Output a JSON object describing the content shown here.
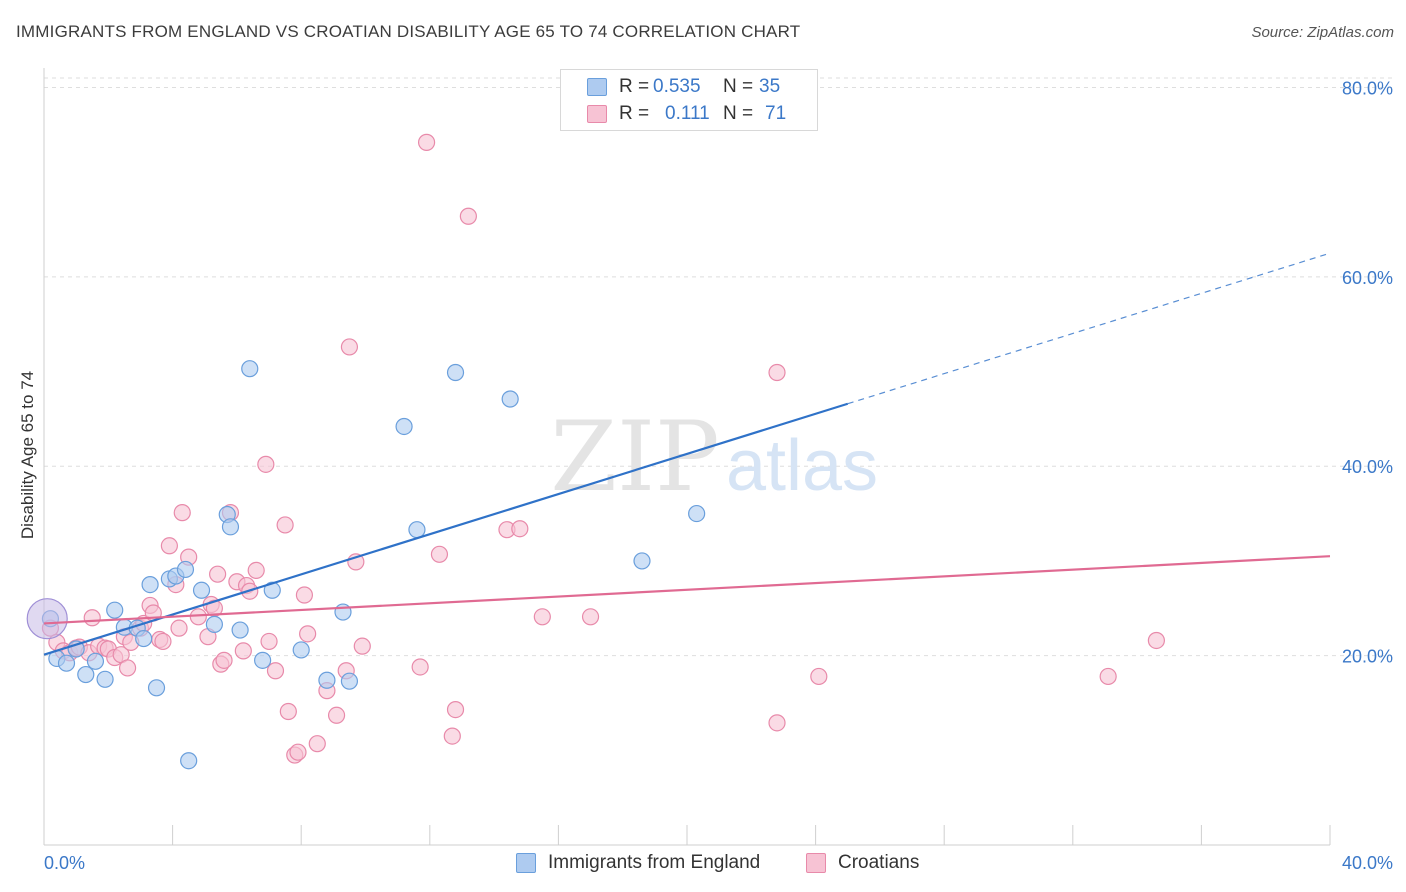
{
  "title": "IMMIGRANTS FROM ENGLAND VS CROATIAN DISABILITY AGE 65 TO 74 CORRELATION CHART",
  "source": "Source: ZipAtlas.com",
  "watermark": {
    "zip": "ZIP",
    "atlas": "atlas"
  },
  "legend_top": [
    {
      "r_label": "R =",
      "r_value": "0.535",
      "n_label": "N =",
      "n_value": "35",
      "fill": "#aecbf0",
      "stroke": "#6a9fdc"
    },
    {
      "r_label": "R =",
      "r_value": "0.111",
      "n_label": "N =",
      "n_value": "71",
      "fill": "#f7c3d4",
      "stroke": "#e88aaa"
    }
  ],
  "legend_bottom": [
    {
      "label": "Immigrants from England",
      "fill": "#aecbf0",
      "stroke": "#6a9fdc"
    },
    {
      "label": "Croatians",
      "fill": "#f7c3d4",
      "stroke": "#e88aaa"
    }
  ],
  "chart_data": {
    "type": "scatter",
    "title": "IMMIGRANTS FROM ENGLAND VS CROATIAN DISABILITY AGE 65 TO 74 CORRELATION CHART",
    "xlabel": "",
    "ylabel": "Disability Age 65 to 74",
    "xlim": [
      0,
      40
    ],
    "ylim": [
      0,
      81
    ],
    "x_tick_labels": [
      "0.0%",
      "40.0%"
    ],
    "y_ticks": [
      20,
      40,
      60,
      80
    ],
    "y_tick_labels": [
      "20.0%",
      "40.0%",
      "60.0%",
      "80.0%"
    ],
    "grid": true,
    "legend_position": "top-center",
    "series": [
      {
        "name": "Immigrants from England",
        "color": "#6a9fdc",
        "fill": "#aecbf0",
        "trend": {
          "x": [
            0,
            25
          ],
          "y": [
            20.1,
            46.6
          ],
          "dashed_to": [
            40,
            62.5
          ],
          "color": "#2f72c8"
        },
        "points": [
          [
            0.2,
            23.9
          ],
          [
            0.4,
            19.7
          ],
          [
            0.7,
            19.2
          ],
          [
            1.0,
            20.7
          ],
          [
            1.3,
            18.0
          ],
          [
            1.6,
            19.4
          ],
          [
            1.9,
            17.5
          ],
          [
            2.2,
            24.8
          ],
          [
            2.5,
            23.0
          ],
          [
            2.9,
            22.9
          ],
          [
            3.1,
            21.8
          ],
          [
            3.3,
            27.5
          ],
          [
            3.5,
            16.6
          ],
          [
            3.9,
            28.1
          ],
          [
            4.1,
            28.4
          ],
          [
            4.4,
            29.1
          ],
          [
            4.5,
            8.9
          ],
          [
            4.9,
            26.9
          ],
          [
            5.3,
            23.3
          ],
          [
            5.7,
            34.9
          ],
          [
            5.8,
            33.6
          ],
          [
            6.1,
            22.7
          ],
          [
            6.4,
            50.3
          ],
          [
            6.8,
            19.5
          ],
          [
            7.1,
            26.9
          ],
          [
            8.0,
            20.6
          ],
          [
            8.8,
            17.4
          ],
          [
            9.3,
            24.6
          ],
          [
            9.5,
            17.3
          ],
          [
            11.2,
            44.2
          ],
          [
            11.6,
            33.3
          ],
          [
            12.8,
            49.9
          ],
          [
            14.5,
            47.1
          ],
          [
            18.6,
            30.0
          ],
          [
            20.3,
            35.0
          ]
        ]
      },
      {
        "name": "Croatians",
        "color": "#e88aaa",
        "fill": "#f7c3d4",
        "trend": {
          "x": [
            0,
            40
          ],
          "y": [
            23.4,
            30.5
          ],
          "color": "#e06a92"
        },
        "points": [
          [
            0.2,
            22.9
          ],
          [
            0.4,
            21.4
          ],
          [
            0.6,
            20.5
          ],
          [
            0.8,
            20.3
          ],
          [
            1.0,
            20.8
          ],
          [
            1.1,
            20.9
          ],
          [
            1.4,
            20.3
          ],
          [
            1.5,
            24.0
          ],
          [
            1.7,
            21.0
          ],
          [
            1.9,
            20.8
          ],
          [
            2.0,
            20.7
          ],
          [
            2.2,
            19.8
          ],
          [
            2.4,
            20.1
          ],
          [
            2.5,
            22.0
          ],
          [
            2.6,
            18.7
          ],
          [
            2.7,
            21.4
          ],
          [
            3.0,
            22.9
          ],
          [
            3.1,
            23.4
          ],
          [
            3.3,
            25.3
          ],
          [
            3.4,
            24.5
          ],
          [
            3.6,
            21.7
          ],
          [
            3.7,
            21.5
          ],
          [
            3.9,
            31.6
          ],
          [
            4.1,
            27.5
          ],
          [
            4.2,
            22.9
          ],
          [
            4.3,
            35.1
          ],
          [
            4.5,
            30.4
          ],
          [
            4.8,
            24.1
          ],
          [
            5.1,
            22.0
          ],
          [
            5.2,
            25.4
          ],
          [
            5.4,
            28.6
          ],
          [
            5.5,
            19.1
          ],
          [
            5.6,
            19.5
          ],
          [
            5.8,
            35.1
          ],
          [
            6.0,
            27.8
          ],
          [
            6.3,
            27.4
          ],
          [
            6.4,
            26.8
          ],
          [
            6.6,
            29.0
          ],
          [
            6.9,
            40.2
          ],
          [
            7.0,
            21.5
          ],
          [
            7.2,
            18.4
          ],
          [
            7.5,
            33.8
          ],
          [
            7.6,
            14.1
          ],
          [
            7.8,
            9.5
          ],
          [
            7.9,
            9.8
          ],
          [
            8.1,
            26.4
          ],
          [
            8.2,
            22.3
          ],
          [
            8.5,
            10.7
          ],
          [
            8.8,
            16.3
          ],
          [
            9.1,
            13.7
          ],
          [
            9.4,
            18.4
          ],
          [
            9.5,
            52.6
          ],
          [
            9.7,
            29.9
          ],
          [
            9.9,
            21.0
          ],
          [
            11.7,
            18.8
          ],
          [
            11.9,
            74.2
          ],
          [
            12.3,
            30.7
          ],
          [
            12.7,
            11.5
          ],
          [
            12.8,
            14.3
          ],
          [
            13.2,
            66.4
          ],
          [
            14.4,
            33.3
          ],
          [
            14.8,
            33.4
          ],
          [
            15.5,
            24.1
          ],
          [
            17.0,
            24.1
          ],
          [
            22.8,
            12.9
          ],
          [
            22.8,
            49.9
          ],
          [
            24.1,
            17.8
          ],
          [
            33.1,
            17.8
          ],
          [
            34.6,
            21.6
          ],
          [
            5.3,
            25.0
          ],
          [
            6.2,
            20.5
          ]
        ]
      }
    ]
  }
}
